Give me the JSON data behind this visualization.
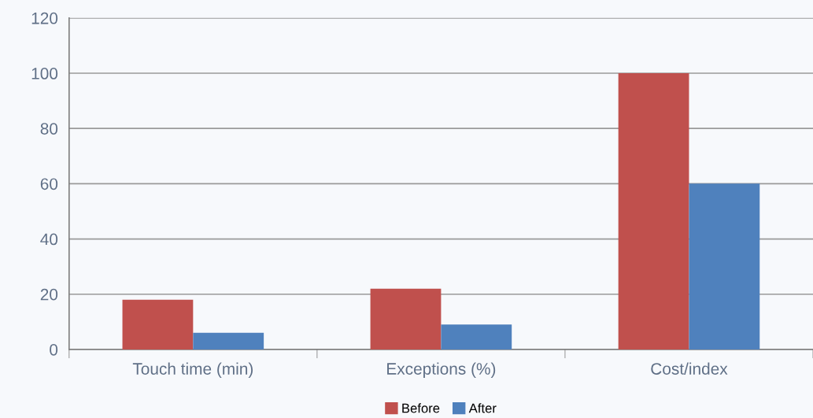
{
  "chart_data": {
    "type": "bar",
    "categories": [
      "Touch time (min)",
      "Exceptions (%)",
      "Cost/index"
    ],
    "series": [
      {
        "name": "Before",
        "color": "#c0504d",
        "values": [
          18,
          22,
          100
        ]
      },
      {
        "name": "After",
        "color": "#4f81bd",
        "values": [
          6,
          9,
          60
        ]
      }
    ],
    "ylim": [
      0,
      120
    ],
    "yticks": [
      0,
      20,
      40,
      60,
      80,
      100,
      120
    ],
    "grid": "y",
    "legend": "bottom"
  }
}
